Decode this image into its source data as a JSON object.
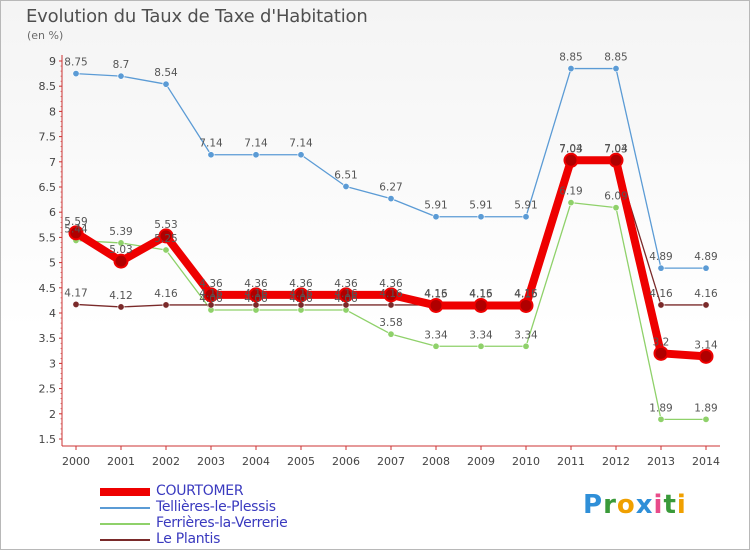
{
  "title": "Evolution du Taux de Taxe d'Habitation",
  "unit": "(en %)",
  "logo": [
    {
      "char": "P",
      "color": "#2f8fd8"
    },
    {
      "char": "r",
      "color": "#3a9a3a"
    },
    {
      "char": "o",
      "color": "#f0a000"
    },
    {
      "char": "x",
      "color": "#2f8fd8"
    },
    {
      "char": "i",
      "color": "#e84b8a"
    },
    {
      "char": "t",
      "color": "#3a9a3a"
    },
    {
      "char": "i",
      "color": "#f0a000"
    }
  ],
  "chart_data": {
    "type": "line",
    "title": "Evolution du Taux de Taxe d'Habitation",
    "ylabel": "(en %)",
    "x": [
      "2000",
      "2001",
      "2002",
      "2003",
      "2004",
      "2005",
      "2006",
      "2007",
      "2008",
      "2009",
      "2010",
      "2011",
      "2012",
      "2013",
      "2014"
    ],
    "ylim": [
      1.5,
      9
    ],
    "yticks": [
      "1.5",
      "2",
      "2.5",
      "3",
      "3.5",
      "4",
      "4.5",
      "5",
      "5.5",
      "6",
      "6.5",
      "7",
      "7.5",
      "8",
      "8.5",
      "9"
    ],
    "grid": false,
    "legend_position": "bottom-left",
    "series": [
      {
        "name": "COURTOMER",
        "color": "#ee0000",
        "width": 6,
        "values": [
          5.59,
          5.03,
          5.53,
          4.36,
          4.36,
          4.36,
          4.36,
          4.36,
          4.15,
          4.15,
          4.15,
          7.03,
          7.03,
          3.2,
          3.14
        ],
        "labels": [
          "5.59",
          "5.03",
          "5.53",
          "4.36",
          "4.36",
          "4.36",
          "4.36",
          "4.36",
          "4.15",
          "4.15",
          "4.15",
          "7.03",
          "7.03",
          "3.2",
          "3.14"
        ]
      },
      {
        "name": "Tellières-le-Plessis",
        "color": "#5b9bd5",
        "width": 1,
        "values": [
          8.75,
          8.7,
          8.54,
          7.14,
          7.14,
          7.14,
          6.51,
          6.27,
          5.91,
          5.91,
          5.91,
          8.85,
          8.85,
          4.89,
          4.89
        ],
        "labels": [
          "8.75",
          "8.7",
          "8.54",
          "7.14",
          "7.14",
          "7.14",
          "6.51",
          "6.27",
          "5.91",
          "5.91",
          "5.91",
          "8.85",
          "8.85",
          "4.89",
          "4.89"
        ]
      },
      {
        "name": "Ferrières-la-Verrerie",
        "color": "#8fd16a",
        "width": 1,
        "values": [
          5.44,
          5.39,
          5.25,
          4.06,
          4.06,
          4.06,
          4.06,
          3.58,
          3.34,
          3.34,
          3.34,
          6.19,
          6.09,
          1.89,
          1.89
        ],
        "labels": [
          "5.44",
          "5.39",
          "5.25",
          "4.06",
          "4.06",
          "4.06",
          "4.06",
          "3.58",
          "3.34",
          "3.34",
          "3.34",
          "6.19",
          "6.09",
          "1.89",
          "1.89"
        ]
      },
      {
        "name": "Le Plantis",
        "color": "#7a2a2a",
        "width": 1,
        "values": [
          4.17,
          4.12,
          4.16,
          4.16,
          4.16,
          4.16,
          4.16,
          4.16,
          4.16,
          4.16,
          4.16,
          7.04,
          7.04,
          4.16,
          4.16
        ],
        "labels": [
          "4.17",
          "4.12",
          "4.16",
          "4.16",
          "4.16",
          "4.16",
          "4.16",
          "4.16",
          "4.16",
          "4.16",
          "4.16",
          "7.04",
          "7.04",
          "4.16",
          "4.16"
        ]
      }
    ],
    "draw_order": [
      2,
      3,
      1,
      0
    ],
    "label_order": [
      1,
      2,
      3,
      0
    ],
    "legend_order": [
      0,
      1,
      2,
      3
    ]
  }
}
